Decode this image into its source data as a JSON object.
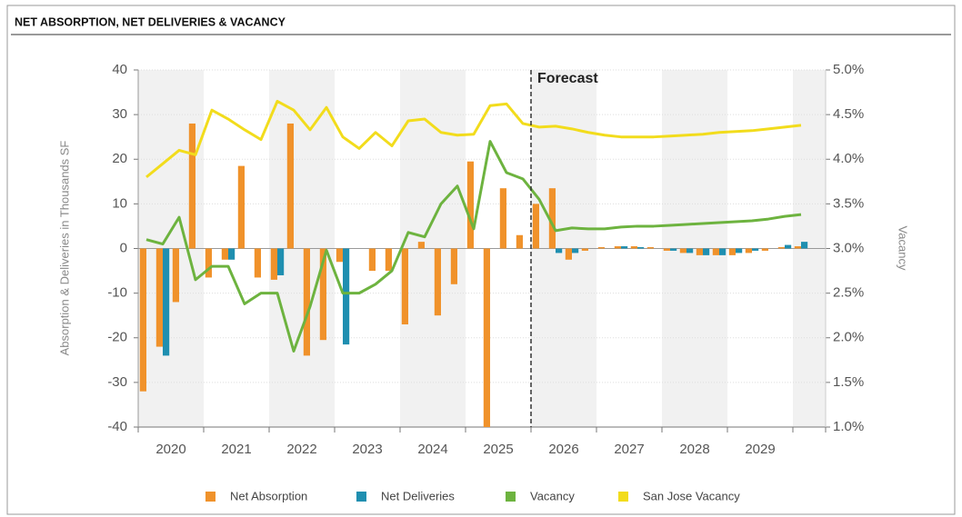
{
  "chart_data": {
    "type": "bar_line",
    "title": "NET ABSORPTION, NET DELIVERIES & VACANCY",
    "ylabel": "Absorption & Deliveries in Thousands SF",
    "y2label": "Vacancy",
    "x_labels": [
      "2020",
      "2021",
      "2022",
      "2023",
      "2024",
      "2025",
      "2026",
      "2027",
      "2028",
      "2029"
    ],
    "annotation": {
      "text": "Forecast",
      "at_label": "2026"
    },
    "ylim": [
      -40,
      40
    ],
    "yticks": [
      -40,
      -30,
      -20,
      -10,
      0,
      10,
      20,
      30,
      40
    ],
    "y2lim": [
      1,
      5
    ],
    "y2ticks": [
      {
        "value": 1,
        "label": "1.0%"
      },
      {
        "value": 1.5,
        "label": "1.5%"
      },
      {
        "value": 2,
        "label": "2.0%"
      },
      {
        "value": 2.5,
        "label": "2.5%"
      },
      {
        "value": 3,
        "label": "3.0%"
      },
      {
        "value": 3.5,
        "label": "3.5%"
      },
      {
        "value": 4,
        "label": "4.0%"
      },
      {
        "value": 4.5,
        "label": "4.5%"
      },
      {
        "value": 5,
        "label": "5.0%"
      }
    ],
    "series": [
      {
        "name": "Net Absorption",
        "kind": "bar",
        "color": "#f0922b",
        "values": [
          -32,
          -22,
          -12,
          28,
          -6.5,
          -2.5,
          18.5,
          -6.5,
          -7,
          28,
          -24,
          -20.5,
          -3,
          0,
          -5,
          -5,
          -17,
          1.5,
          -15,
          -8,
          19.5,
          -40,
          13.5,
          3,
          10,
          13.5,
          -2.5,
          -0.5,
          0.3,
          0.5,
          0.5,
          0.3,
          -0.5,
          -1,
          -1.5,
          -1.5,
          -1.5,
          -1,
          -0.5,
          0.3,
          0.5,
          null
        ]
      },
      {
        "name": "Net Deliveries",
        "kind": "bar",
        "color": "#1f8fb0",
        "values": [
          0,
          -24,
          0,
          0,
          0,
          -2.5,
          0,
          0,
          -6,
          0,
          0,
          0,
          -21.5,
          0,
          0,
          0,
          0,
          0,
          0,
          0,
          0,
          0,
          0,
          0,
          0,
          -1,
          -1,
          0,
          0,
          0.5,
          0.3,
          0,
          -0.5,
          -1,
          -1.5,
          -1.5,
          -1,
          -0.5,
          0,
          0.8,
          1.5,
          null
        ]
      },
      {
        "name": "Vacancy",
        "kind": "line",
        "axis": "y2",
        "color": "#6db33f",
        "values": [
          3.1,
          3.05,
          3.35,
          2.65,
          2.8,
          2.8,
          2.38,
          2.5,
          2.5,
          1.85,
          2.35,
          2.98,
          2.5,
          2.5,
          2.6,
          2.75,
          3.18,
          3.13,
          3.5,
          3.7,
          3.22,
          4.2,
          3.85,
          3.78,
          3.55,
          3.2,
          3.23,
          3.22,
          3.22,
          3.24,
          3.25,
          3.25,
          3.26,
          3.27,
          3.28,
          3.29,
          3.3,
          3.31,
          3.33,
          3.36,
          3.38,
          null
        ]
      },
      {
        "name": "San Jose Vacancy",
        "kind": "line",
        "axis": "y2",
        "color": "#f2dc1c",
        "values": [
          3.8,
          3.95,
          4.1,
          4.05,
          4.55,
          4.45,
          4.33,
          4.22,
          4.65,
          4.55,
          4.33,
          4.58,
          4.25,
          4.12,
          4.3,
          4.15,
          4.43,
          4.45,
          4.3,
          4.27,
          4.28,
          4.6,
          4.62,
          4.4,
          4.36,
          4.37,
          4.34,
          4.3,
          4.27,
          4.25,
          4.25,
          4.25,
          4.26,
          4.27,
          4.28,
          4.3,
          4.31,
          4.32,
          4.34,
          4.36,
          4.38,
          null
        ]
      }
    ]
  }
}
